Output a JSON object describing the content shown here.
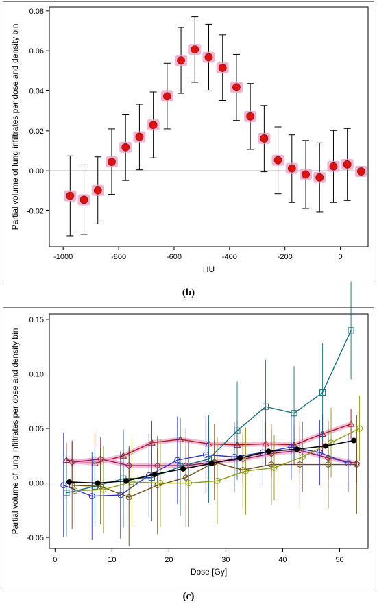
{
  "captions": {
    "b": "(b)",
    "c": "(c)"
  },
  "chart_data": [
    {
      "type": "scatter",
      "panel": "(b)",
      "xlabel": "HU",
      "ylabel": "Partial volume of lung infiltrates per dose and density bin",
      "xlim": [
        -1050,
        100
      ],
      "ylim": [
        -0.038,
        0.082
      ],
      "xticks": [
        -1000,
        -800,
        -600,
        -400,
        -200,
        0
      ],
      "yticks": [
        -0.02,
        0.0,
        0.02,
        0.04,
        0.06,
        0.08
      ],
      "ytick_labels": [
        "-0.02",
        "0.00",
        "0.02",
        "0.04",
        "0.06",
        "0.08"
      ],
      "grid": false,
      "zero_line": true,
      "marker_color": "#dd1111",
      "halo_color": "#f0a0c8",
      "series": [
        {
          "x": [
            -975,
            -925,
            -875,
            -825,
            -775,
            -725,
            -675,
            -625,
            -575,
            -525,
            -475,
            -425,
            -375,
            -325,
            -275,
            -225,
            -175,
            -125,
            -75,
            -25,
            25,
            75
          ],
          "y": [
            -0.0125,
            -0.0145,
            -0.0098,
            0.0045,
            0.0118,
            0.017,
            0.023,
            0.0373,
            0.0552,
            0.0607,
            0.0568,
            0.0515,
            0.0418,
            0.0272,
            0.0162,
            0.0053,
            0.0012,
            -0.0018,
            -0.0033,
            0.0022,
            0.0032,
            -0.0003
          ],
          "err_low": [
            -0.0325,
            -0.0318,
            -0.0265,
            -0.0118,
            -0.0048,
            0.0005,
            0.0065,
            0.021,
            0.0388,
            0.0443,
            0.0403,
            0.0352,
            0.0252,
            0.0107,
            -0.0005,
            -0.0115,
            -0.0158,
            -0.0188,
            -0.0205,
            -0.0158,
            -0.0148,
            -0.0003
          ],
          "err_high": [
            0.0075,
            0.003,
            0.007,
            0.021,
            0.028,
            0.0333,
            0.0395,
            0.0538,
            0.0717,
            0.077,
            0.0733,
            0.068,
            0.0582,
            0.0437,
            0.0327,
            0.022,
            0.018,
            0.0152,
            0.014,
            0.0202,
            0.0212,
            -0.0003
          ]
        }
      ]
    },
    {
      "type": "line",
      "panel": "(c)",
      "xlabel": "Dose [Gy]",
      "ylabel": "Partial volume of lung infiltrates per dose and density bin",
      "xlim": [
        -1,
        55
      ],
      "ylim": [
        -0.06,
        0.155
      ],
      "xticks": [
        0,
        10,
        20,
        30,
        40,
        50
      ],
      "yticks": [
        -0.05,
        0.0,
        0.05,
        0.1,
        0.15
      ],
      "ytick_labels": [
        "-0.05",
        "0.00",
        "0.05",
        "0.10",
        "0.15"
      ],
      "grid": false,
      "zero_line": true,
      "series": [
        {
          "marker": "triangle",
          "color": "#a01818",
          "halo": "#f4a6cf",
          "x": [
            2,
            7,
            12,
            17,
            22,
            27,
            32,
            37,
            42,
            47,
            52
          ],
          "y": [
            0.021,
            0.018,
            0.025,
            0.037,
            0.04,
            0.036,
            0.035,
            0.036,
            0.035,
            0.045,
            0.054
          ],
          "err": [
            0.016,
            0.028,
            0.022,
            0.02,
            0.018,
            0.02,
            0.022,
            0.02,
            0.018,
            0.018,
            0.014
          ]
        },
        {
          "marker": "diamond",
          "color": "#8a1f4e",
          "halo": "#f4a6cf",
          "x": [
            3,
            8,
            13,
            18,
            23,
            28,
            33,
            38,
            43,
            48,
            53
          ],
          "y": [
            0.019,
            0.022,
            0.016,
            0.016,
            0.016,
            0.019,
            0.022,
            0.027,
            0.03,
            0.023,
            0.018
          ],
          "err": [
            0.02,
            0.02,
            0.018,
            0.016,
            0.018,
            0.02,
            0.022,
            0.022,
            0.022,
            0.02,
            0.018
          ]
        },
        {
          "marker": "square",
          "color": "#176b7a",
          "halo": null,
          "x": [
            2,
            7,
            12,
            17,
            22,
            27,
            32,
            37,
            42,
            47,
            52
          ],
          "y": [
            -0.009,
            -0.003,
            0.004,
            0.005,
            0.015,
            0.022,
            0.048,
            0.07,
            0.064,
            0.083,
            0.14
          ],
          "err": [
            0.04,
            0.035,
            0.045,
            0.04,
            0.045,
            0.04,
            0.045,
            0.043,
            0.043,
            0.045,
            0.045
          ]
        },
        {
          "marker": "circle",
          "color": "#2b33c2",
          "halo": null,
          "x": [
            1.5,
            6.5,
            11.5,
            16.5,
            21.5,
            26.5,
            31.5,
            36.5,
            41.5,
            46.5,
            51.5
          ],
          "y": [
            -0.002,
            -0.012,
            -0.011,
            0.007,
            0.021,
            0.026,
            0.024,
            0.028,
            0.033,
            0.028,
            0.018
          ],
          "err": [
            0.048,
            0.04,
            0.04,
            0.038,
            0.04,
            0.035,
            0.032,
            0.03,
            0.03,
            0.03,
            0.026
          ]
        },
        {
          "marker": "hexagon",
          "color": "#6b4a18",
          "halo": null,
          "x": [
            3,
            8,
            13,
            18,
            23,
            28,
            33,
            38,
            43,
            48,
            53
          ],
          "y": [
            -0.002,
            -0.003,
            -0.013,
            -0.002,
            0.005,
            0.019,
            0.012,
            0.017,
            0.017,
            0.017,
            0.017
          ],
          "err": [
            0.04,
            0.035,
            0.045,
            0.045,
            0.045,
            0.035,
            0.035,
            0.037,
            0.04,
            0.04,
            0.045
          ]
        },
        {
          "marker": "circle",
          "color": "#8a9a10",
          "halo": null,
          "x": [
            3.5,
            8.5,
            13.5,
            18.5,
            23.5,
            28.5,
            33.5,
            38.5,
            43.5,
            48.5,
            53.5
          ],
          "y": [
            -0.007,
            -0.006,
            0.001,
            0.0,
            0.0,
            0.002,
            0.011,
            0.014,
            0.024,
            0.037,
            0.05
          ],
          "err": [
            0.03,
            0.04,
            0.04,
            0.04,
            0.04,
            0.04,
            0.04,
            0.03,
            0.032,
            0.032,
            0.03
          ]
        },
        {
          "marker": "filled-circle",
          "color": "#000000",
          "halo": null,
          "x": [
            2.5,
            7.5,
            12.5,
            17.5,
            22.5,
            27.5,
            32.5,
            37.5,
            42.5,
            47.5,
            52.5
          ],
          "y": [
            0.001,
            0.0,
            0.002,
            0.008,
            0.013,
            0.018,
            0.023,
            0.029,
            0.031,
            0.034,
            0.039
          ],
          "err": [
            0,
            0,
            0,
            0,
            0,
            0,
            0,
            0,
            0,
            0,
            0
          ]
        }
      ]
    }
  ]
}
